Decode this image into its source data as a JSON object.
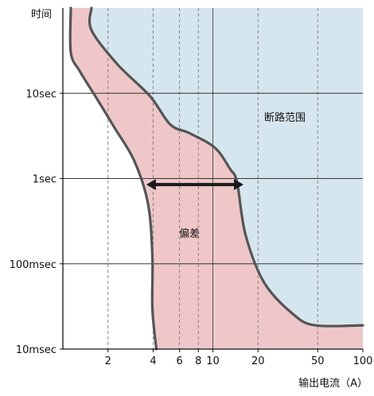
{
  "chart_data": {
    "type": "area",
    "title": "",
    "ylabel": "时间",
    "xlabel": "输出电流（A）",
    "x_scale": "log",
    "y_scale": "log",
    "xlim": [
      1,
      100
    ],
    "ylim": [
      0.01,
      100
    ],
    "x_ticks": [
      {
        "value": 2,
        "label": "2"
      },
      {
        "value": 4,
        "label": "4"
      },
      {
        "value": 6,
        "label": "6"
      },
      {
        "value": 8,
        "label": "8"
      },
      {
        "value": 10,
        "label": "10"
      },
      {
        "value": 20,
        "label": "20"
      },
      {
        "value": 50,
        "label": "50"
      },
      {
        "value": 100,
        "label": "100"
      }
    ],
    "y_ticks": [
      {
        "value": 0.01,
        "label": "10msec"
      },
      {
        "value": 0.1,
        "label": "100msec"
      },
      {
        "value": 1,
        "label": "1sec"
      },
      {
        "value": 10,
        "label": "10sec"
      }
    ],
    "grid": {
      "x_dashed_at": [
        2,
        4,
        6,
        8,
        20,
        50
      ],
      "x_solid_at": [
        10
      ],
      "y_solid_at": [
        0.1,
        1,
        10
      ]
    },
    "curves": [
      {
        "role": "lower-bound",
        "points": [
          [
            1.13,
            100
          ],
          [
            1.13,
            30
          ],
          [
            1.3,
            18
          ],
          [
            1.6,
            10
          ],
          [
            2.2,
            4
          ],
          [
            3.0,
            1.6
          ],
          [
            3.7,
            0.5
          ],
          [
            3.95,
            0.12
          ],
          [
            3.95,
            0.03
          ],
          [
            4.2,
            0.01
          ]
        ]
      },
      {
        "role": "upper-bound",
        "points": [
          [
            1.55,
            100
          ],
          [
            1.55,
            55
          ],
          [
            2.3,
            22
          ],
          [
            3.8,
            9.3
          ],
          [
            5.2,
            4.3
          ],
          [
            7.0,
            3.4
          ],
          [
            10.3,
            2.3
          ],
          [
            13.0,
            1.3
          ],
          [
            14.5,
            0.9
          ],
          [
            16.5,
            0.22
          ],
          [
            22,
            0.06
          ],
          [
            34,
            0.026
          ],
          [
            48,
            0.019
          ],
          [
            100,
            0.019
          ]
        ]
      }
    ],
    "regions": [
      {
        "name": "断路范围",
        "color": "#d6e6ee"
      },
      {
        "name": "tolerance-band",
        "color": "#efc7c9"
      }
    ],
    "annotations": {
      "trip_region_label": "断路范围",
      "tolerance_label": "偏差",
      "tolerance_arrow_x": [
        3.6,
        16.0
      ],
      "tolerance_arrow_y": 0.85
    },
    "colors": {
      "trip": "#d6e6ee",
      "band": "#efc7c9",
      "curve": "#555555",
      "arrow": "#1a1a1a"
    }
  }
}
